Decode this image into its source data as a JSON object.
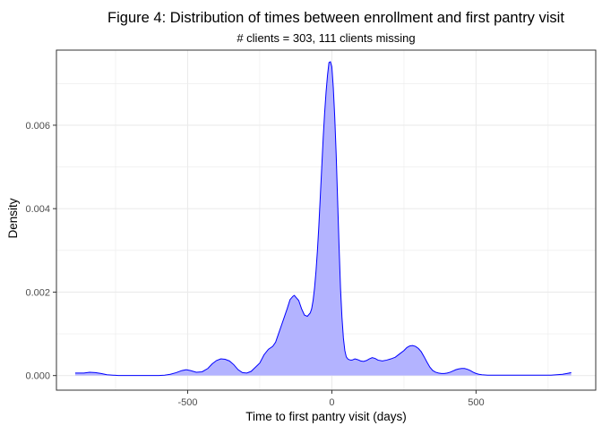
{
  "chart_data": {
    "type": "area",
    "title": "Figure 4: Distribution of times between enrollment and first pantry visit",
    "subtitle": "# clients = 303, 111 clients missing",
    "xlabel": "Time to first pantry visit (days)",
    "ylabel": "Density",
    "xlim": [
      -955,
      915
    ],
    "ylim": [
      -0.00035,
      0.0078
    ],
    "x_ticks": [
      -500,
      0,
      500
    ],
    "x_tick_labels": [
      "-500",
      "0",
      "500"
    ],
    "y_ticks": [
      0.0,
      0.002,
      0.004,
      0.006
    ],
    "y_tick_labels": [
      "0.000",
      "0.002",
      "0.004",
      "0.006"
    ],
    "grid": true,
    "legend": "none",
    "colors": {
      "fill": "#b3b3ff",
      "line": "#0000ff",
      "panel_border": "#333333",
      "grid": "#ebebeb"
    },
    "series": [
      {
        "x": [
          -890,
          -860,
          -840,
          -820,
          -800,
          -780,
          -760,
          -740,
          -720,
          -700,
          -680,
          -660,
          -640,
          -620,
          -600,
          -580,
          -560,
          -540,
          -520,
          -505,
          -490,
          -470,
          -450,
          -430,
          -415,
          -400,
          -385,
          -370,
          -355,
          -340,
          -325,
          -310,
          -295,
          -280,
          -265,
          -250,
          -235,
          -220,
          -205,
          -195,
          -185,
          -175,
          -165,
          -155,
          -145,
          -135,
          -130,
          -125,
          -115,
          -105,
          -95,
          -85,
          -75,
          -70,
          -65,
          -60,
          -55,
          -50,
          -45,
          -40,
          -35,
          -30,
          -25,
          -20,
          -15,
          -10,
          -5,
          0,
          5,
          10,
          15,
          20,
          25,
          30,
          35,
          40,
          45,
          50,
          55,
          60,
          65,
          70,
          80,
          90,
          100,
          110,
          120,
          130,
          140,
          150,
          160,
          175,
          190,
          205,
          220,
          235,
          250,
          260,
          270,
          280,
          290,
          300,
          310,
          320,
          330,
          340,
          350,
          360,
          370,
          380,
          390,
          400,
          410,
          420,
          430,
          440,
          450,
          460,
          470,
          480,
          490,
          500,
          510,
          520,
          540,
          560,
          580,
          600,
          620,
          640,
          660,
          680,
          700,
          720,
          740,
          760,
          780,
          800,
          815,
          830
        ],
        "y": [
          6e-05,
          6e-05,
          8e-05,
          7e-05,
          5e-05,
          2e-05,
          1e-05,
          0.0,
          0.0,
          0.0,
          0.0,
          0.0,
          0.0,
          0.0,
          0.0,
          1e-05,
          3e-05,
          7e-05,
          0.00012,
          0.00014,
          0.00012,
          8e-05,
          9e-05,
          0.00017,
          0.00028,
          0.00036,
          0.0004,
          0.00039,
          0.00035,
          0.00026,
          0.00014,
          7e-05,
          6e-05,
          0.0001,
          0.0002,
          0.0003,
          0.0005,
          0.00063,
          0.0007,
          0.0008,
          0.001,
          0.0012,
          0.0014,
          0.0016,
          0.00182,
          0.0019,
          0.00192,
          0.00188,
          0.0018,
          0.0016,
          0.00145,
          0.00142,
          0.0015,
          0.0016,
          0.0018,
          0.0021,
          0.0025,
          0.003,
          0.0036,
          0.0043,
          0.005,
          0.0057,
          0.0063,
          0.0068,
          0.0072,
          0.0075,
          0.00752,
          0.0074,
          0.0069,
          0.0062,
          0.0053,
          0.0042,
          0.0031,
          0.0021,
          0.0014,
          0.0009,
          0.0006,
          0.00045,
          0.0004,
          0.00038,
          0.00037,
          0.00037,
          0.0004,
          0.00038,
          0.00035,
          0.00034,
          0.00036,
          0.0004,
          0.00043,
          0.00041,
          0.00037,
          0.00035,
          0.00037,
          0.0004,
          0.00044,
          0.00052,
          0.0006,
          0.00067,
          0.00071,
          0.00072,
          0.0007,
          0.00065,
          0.00057,
          0.00045,
          0.00032,
          0.0002,
          0.00012,
          8e-05,
          6e-05,
          5e-05,
          5e-05,
          6e-05,
          8e-05,
          0.00011,
          0.00014,
          0.00016,
          0.00017,
          0.00017,
          0.00015,
          0.00012,
          8e-05,
          5e-05,
          3e-05,
          2e-05,
          1e-05,
          1e-05,
          1e-05,
          1e-05,
          1e-05,
          1e-05,
          1e-05,
          1e-05,
          1e-05,
          1e-05,
          1e-05,
          1e-05,
          2e-05,
          3e-05,
          5e-05,
          7e-05
        ]
      }
    ]
  }
}
